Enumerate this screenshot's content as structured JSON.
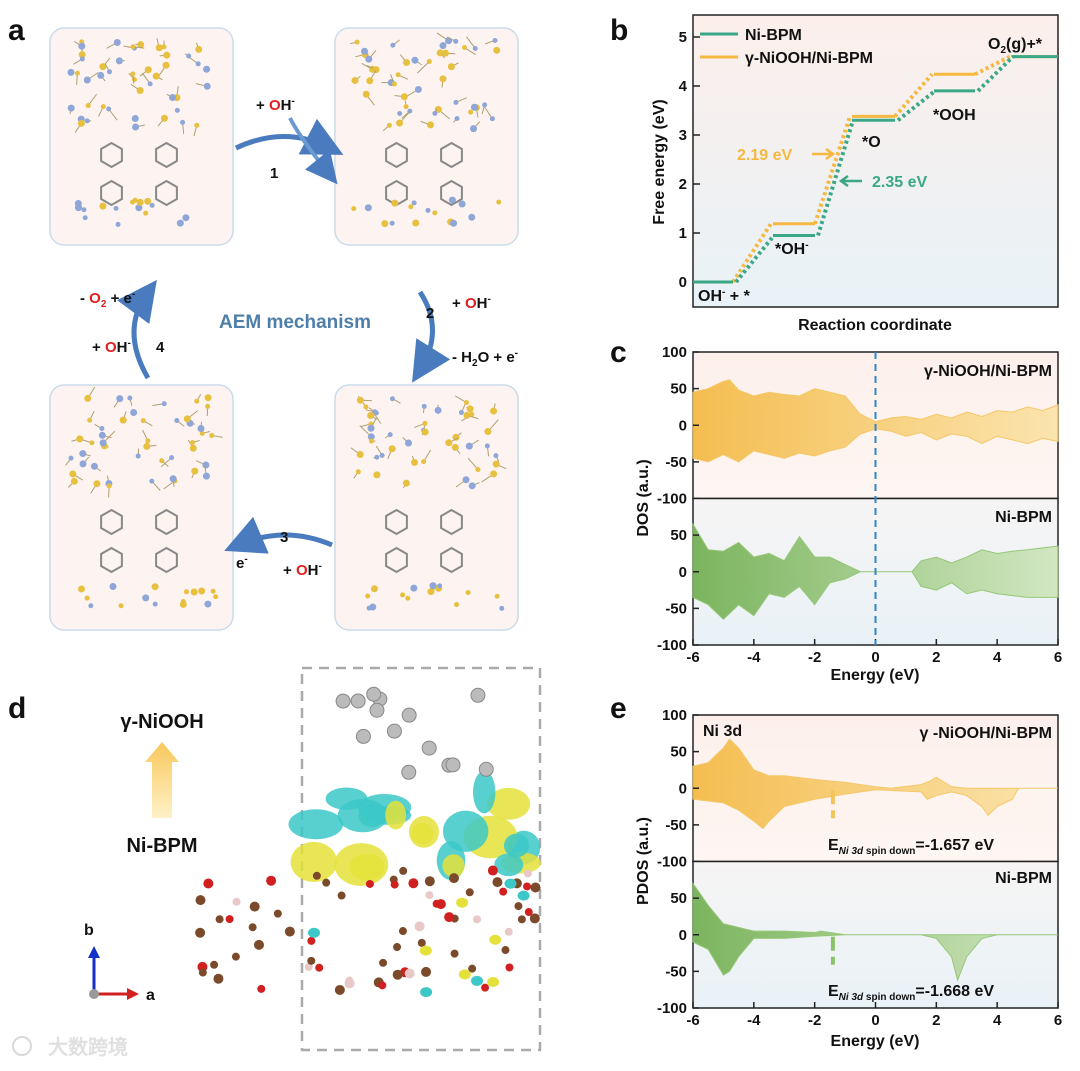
{
  "panel_labels": {
    "a": "a",
    "b": "b",
    "c": "c",
    "d": "d",
    "e": "e"
  },
  "panel_a": {
    "title": "AEM mechanism",
    "steps": [
      {
        "num": "1",
        "text_pre": "+ ",
        "o": "O",
        "text_post": "H",
        "sup": "-"
      },
      {
        "num": "2",
        "text_pre": "+ ",
        "o": "O",
        "text_post": "H",
        "sup": "-",
        "extra": "- H",
        "extra_sub": "2",
        "extra_post": "O + e",
        "extra_sup": "-"
      },
      {
        "num": "3",
        "text_pre": "+ ",
        "o": "O",
        "text_post": "H",
        "sup": "-",
        "extra": "e",
        "extra_sup": "-"
      },
      {
        "num": "4",
        "text_pre": "+ ",
        "o": "O",
        "text_post": "H",
        "sup": "-",
        "extra": "- ",
        "extra_o": "O",
        "extra_sub": "2",
        "extra_post": " + e",
        "extra_sup": "-"
      }
    ],
    "colors": {
      "arrow": "#4a7bbf",
      "oxygen": "#e02020",
      "title": "#4f7fa8"
    }
  },
  "panel_d": {
    "top_label": "γ-NiOOH",
    "bottom_label": "Ni-BPM",
    "axis_b": "b",
    "axis_a": "a"
  },
  "watermark": "大数跨境",
  "chart_data": [
    {
      "type": "line",
      "panel": "b",
      "title": "",
      "xlabel": "Reaction coordinate",
      "ylabel": "Free energy (eV)",
      "ylim": [
        -0.5,
        5.5
      ],
      "yticks": [
        "0",
        "1",
        "2",
        "3",
        "4",
        "5"
      ],
      "categories": [
        "OH- + *",
        "*OH-",
        "*O",
        "*OOH",
        "O2(g)+*"
      ],
      "series": [
        {
          "name": "Ni-BPM",
          "color": "#3aa886",
          "values": [
            0,
            0.95,
            3.3,
            3.9,
            4.6
          ]
        },
        {
          "name": "γ-NiOOH/Ni-BPM",
          "color": "#f5b840",
          "values": [
            0,
            1.19,
            3.38,
            4.24,
            4.6
          ]
        }
      ],
      "annotations": {
        "gamma_barrier": "2.19 eV",
        "ni_barrier": "2.35 eV",
        "s0": "OH",
        "s0_sup": "-",
        "s0_post": " + *",
        "s1": "*OH",
        "s1_sup": "-",
        "s2": "*O",
        "s3": "*OOH",
        "s4": "O",
        "s4_sub": "2",
        "s4_post": "(g)+*"
      }
    },
    {
      "type": "area",
      "panel": "c",
      "xlabel": "Energy (eV)",
      "ylabel": "DOS (a.u.)",
      "xlim": [
        -6,
        6
      ],
      "ylim": [
        -100,
        100
      ],
      "xticks": [
        "-6",
        "-4",
        "-2",
        "0",
        "2",
        "4",
        "6"
      ],
      "yticks": [
        "100",
        "50",
        "0",
        "-50",
        "-100"
      ],
      "fermi_level": 0,
      "subplots": [
        {
          "name": "γ-NiOOH/Ni-BPM",
          "color": "#f5c35a",
          "up": [
            [
              -6,
              45
            ],
            [
              -5.5,
              50
            ],
            [
              -5,
              60
            ],
            [
              -4.8,
              62
            ],
            [
              -4.5,
              48
            ],
            [
              -4,
              40
            ],
            [
              -3.5,
              45
            ],
            [
              -3,
              42
            ],
            [
              -2.5,
              40
            ],
            [
              -2,
              50
            ],
            [
              -1.5,
              45
            ],
            [
              -1,
              40
            ],
            [
              -0.5,
              15
            ],
            [
              0,
              5
            ],
            [
              0.5,
              10
            ],
            [
              1,
              12
            ],
            [
              1.5,
              8
            ],
            [
              2,
              15
            ],
            [
              2.5,
              10
            ],
            [
              3,
              18
            ],
            [
              3.5,
              12
            ],
            [
              4,
              20
            ],
            [
              4.5,
              18
            ],
            [
              5,
              25
            ],
            [
              5.5,
              20
            ],
            [
              6,
              28
            ]
          ],
          "down": [
            [
              -6,
              -45
            ],
            [
              -5.5,
              -50
            ],
            [
              -5,
              -40
            ],
            [
              -4.5,
              -50
            ],
            [
              -4,
              -35
            ],
            [
              -3.5,
              -40
            ],
            [
              -3,
              -45
            ],
            [
              -2.5,
              -38
            ],
            [
              -2,
              -42
            ],
            [
              -1.5,
              -35
            ],
            [
              -1,
              -30
            ],
            [
              -0.5,
              -12
            ],
            [
              0,
              -5
            ],
            [
              0.5,
              -8
            ],
            [
              1,
              -15
            ],
            [
              1.5,
              -10
            ],
            [
              2,
              -20
            ],
            [
              2.5,
              -12
            ],
            [
              3,
              -15
            ],
            [
              3.5,
              -25
            ],
            [
              4,
              -15
            ],
            [
              4.5,
              -20
            ],
            [
              5,
              -25
            ],
            [
              5.5,
              -18
            ],
            [
              6,
              -22
            ]
          ]
        },
        {
          "name": "Ni-BPM",
          "color": "#8cc36a",
          "up": [
            [
              -6,
              65
            ],
            [
              -5.5,
              30
            ],
            [
              -5,
              28
            ],
            [
              -4.5,
              40
            ],
            [
              -4,
              20
            ],
            [
              -3.5,
              25
            ],
            [
              -3,
              15
            ],
            [
              -2.5,
              48
            ],
            [
              -2,
              20
            ],
            [
              -1.5,
              20
            ],
            [
              -1,
              10
            ],
            [
              -0.5,
              0
            ],
            [
              0,
              0
            ],
            [
              1.2,
              0
            ],
            [
              1.5,
              15
            ],
            [
              2,
              20
            ],
            [
              2.5,
              12
            ],
            [
              3,
              20
            ],
            [
              3.5,
              30
            ],
            [
              4,
              25
            ],
            [
              4.5,
              28
            ],
            [
              5,
              30
            ],
            [
              6,
              35
            ]
          ],
          "down": [
            [
              -6,
              -35
            ],
            [
              -5.5,
              -45
            ],
            [
              -5,
              -65
            ],
            [
              -4.5,
              -45
            ],
            [
              -4,
              -60
            ],
            [
              -3.5,
              -30
            ],
            [
              -3,
              -35
            ],
            [
              -2.5,
              -20
            ],
            [
              -2,
              -45
            ],
            [
              -1.5,
              -15
            ],
            [
              -1,
              -10
            ],
            [
              -0.5,
              0
            ],
            [
              0,
              0
            ],
            [
              1.2,
              0
            ],
            [
              1.5,
              -20
            ],
            [
              2,
              -25
            ],
            [
              2.5,
              -15
            ],
            [
              3,
              -30
            ],
            [
              3.5,
              -25
            ],
            [
              4,
              -30
            ],
            [
              5,
              -35
            ],
            [
              6,
              -35
            ]
          ]
        }
      ]
    },
    {
      "type": "area",
      "panel": "e",
      "xlabel": "Energy (eV)",
      "ylabel": "PDOS (a.u.)",
      "xlim": [
        -6,
        6
      ],
      "ylim": [
        -100,
        100
      ],
      "xticks": [
        "-6",
        "-4",
        "-2",
        "0",
        "2",
        "4",
        "6"
      ],
      "yticks": [
        "100",
        "50",
        "0",
        "-50",
        "-100"
      ],
      "orbital_label": "Ni 3d",
      "subplots": [
        {
          "name": "γ -NiOOH/Ni-BPM",
          "color": "#f5c35a",
          "marker_x": -1.4,
          "center_label": {
            "pre": "E",
            "sub": "Ni 3d",
            "sub2": " spin down",
            "post": "=-1.657 eV"
          },
          "up": [
            [
              -6,
              30
            ],
            [
              -5.5,
              35
            ],
            [
              -5,
              55
            ],
            [
              -4.8,
              67
            ],
            [
              -4.5,
              55
            ],
            [
              -4,
              25
            ],
            [
              -3.5,
              17
            ],
            [
              -3,
              17
            ],
            [
              -2,
              12
            ],
            [
              -1,
              8
            ],
            [
              0,
              2
            ],
            [
              0.5,
              0
            ],
            [
              1.5,
              5
            ],
            [
              1.8,
              10
            ],
            [
              2,
              15
            ],
            [
              2.5,
              2
            ],
            [
              3,
              0
            ],
            [
              6,
              0
            ]
          ],
          "down": [
            [
              -6,
              -15
            ],
            [
              -5,
              -20
            ],
            [
              -4.5,
              -30
            ],
            [
              -4,
              -45
            ],
            [
              -3.7,
              -55
            ],
            [
              -3.5,
              -45
            ],
            [
              -3,
              -25
            ],
            [
              -2,
              -15
            ],
            [
              -1,
              -8
            ],
            [
              0,
              -2
            ],
            [
              1.5,
              -5
            ],
            [
              1.7,
              -15
            ],
            [
              2,
              -10
            ],
            [
              2.5,
              -5
            ],
            [
              3,
              -10
            ],
            [
              3.5,
              -25
            ],
            [
              3.7,
              -37
            ],
            [
              4,
              -25
            ],
            [
              4.5,
              -15
            ],
            [
              4.7,
              0
            ],
            [
              6,
              0
            ]
          ]
        },
        {
          "name": "Ni-BPM",
          "color": "#8cc36a",
          "marker_x": -1.4,
          "center_label": {
            "pre": "E",
            "sub": "Ni 3d",
            "sub2": " spin down",
            "post": "=-1.668 eV"
          },
          "up": [
            [
              -6,
              70
            ],
            [
              -5.5,
              40
            ],
            [
              -5,
              15
            ],
            [
              -4,
              5
            ],
            [
              -3,
              5
            ],
            [
              -2,
              3
            ],
            [
              -1.8,
              5
            ],
            [
              -1,
              0
            ],
            [
              6,
              0
            ]
          ],
          "down": [
            [
              -6,
              -10
            ],
            [
              -5.5,
              -20
            ],
            [
              -5,
              -55
            ],
            [
              -4.8,
              -50
            ],
            [
              -4.5,
              -30
            ],
            [
              -4,
              -5
            ],
            [
              -3,
              -5
            ],
            [
              -2,
              -2
            ],
            [
              -1,
              0
            ],
            [
              1.5,
              0
            ],
            [
              2,
              -5
            ],
            [
              2.5,
              -30
            ],
            [
              2.7,
              -62
            ],
            [
              3,
              -30
            ],
            [
              3.5,
              -5
            ],
            [
              4,
              0
            ],
            [
              6,
              0
            ]
          ]
        }
      ]
    }
  ]
}
